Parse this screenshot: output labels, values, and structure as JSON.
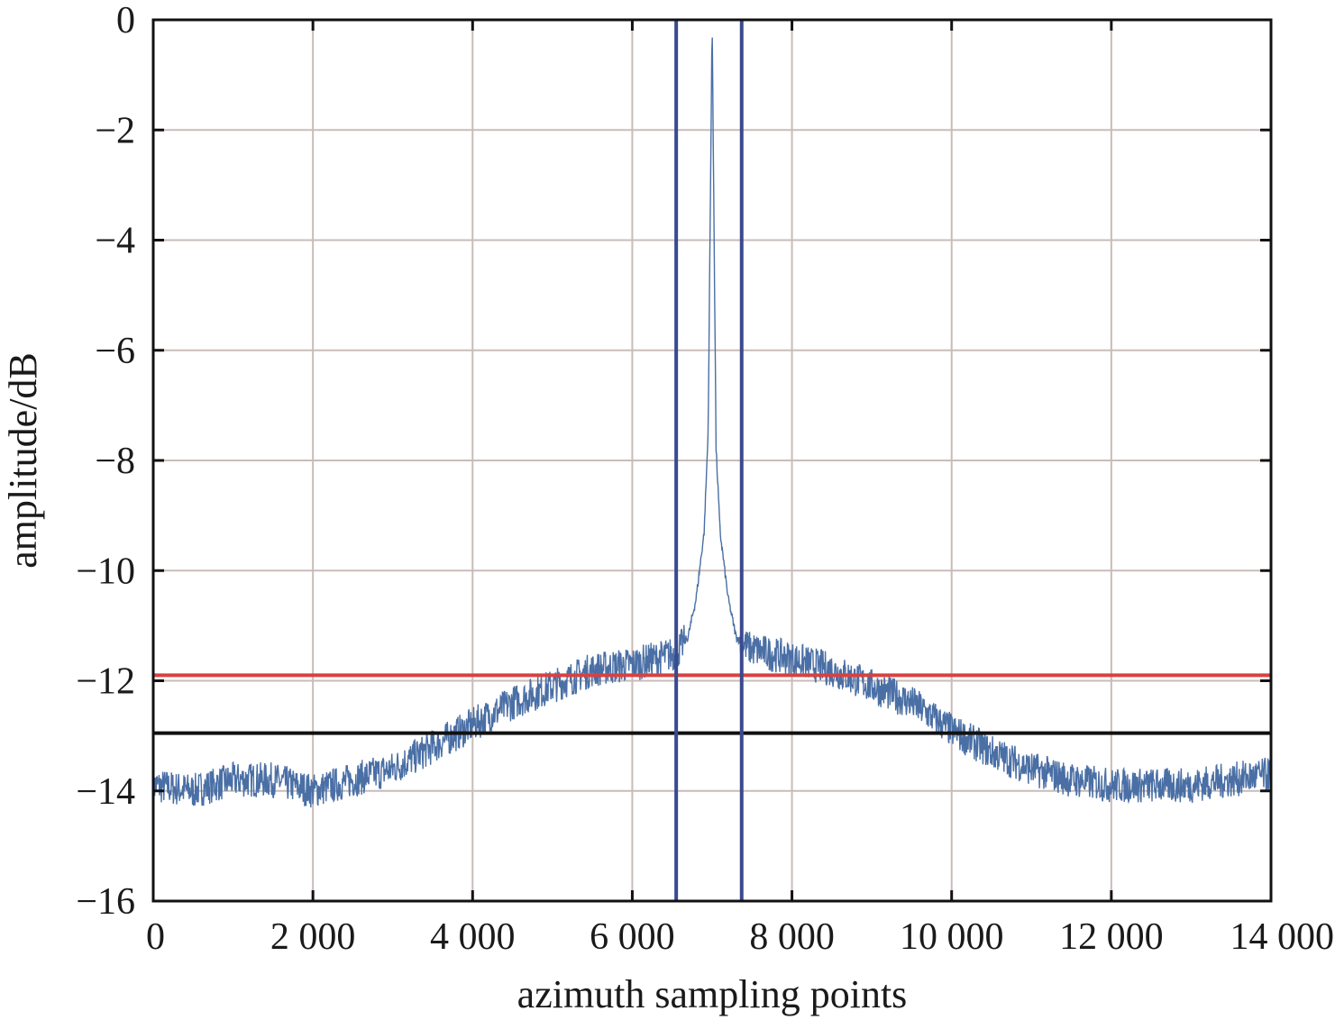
{
  "chart_data": {
    "type": "line",
    "title": "",
    "xlabel": "azimuth sampling points",
    "ylabel": "amplitude/dB",
    "xlim": [
      0,
      14000
    ],
    "ylim": [
      -16,
      0
    ],
    "x_ticks": [
      0,
      2000,
      4000,
      6000,
      8000,
      10000,
      12000,
      14000
    ],
    "x_tick_labels": [
      "0",
      "2 000",
      "4 000",
      "6 000",
      "8 000",
      "10 000",
      "12 000",
      "14 000"
    ],
    "y_ticks": [
      0,
      -2,
      -4,
      -6,
      -8,
      -10,
      -12,
      -14,
      -16
    ],
    "y_tick_labels": [
      "0",
      "−2",
      "−4",
      "−6",
      "−8",
      "−10",
      "−12",
      "−14",
      "−16"
    ],
    "grid": true,
    "series": [
      {
        "color": "#4a6fa5",
        "x": [
          0,
          500,
          1000,
          1500,
          2000,
          2500,
          3000,
          3500,
          4000,
          4500,
          5000,
          5500,
          6000,
          6300,
          6550,
          6700,
          6800,
          6900,
          6950,
          7000,
          7050,
          7100,
          7200,
          7300,
          7450,
          7700,
          8000,
          8500,
          9000,
          9500,
          10000,
          10500,
          11000,
          11500,
          12000,
          12500,
          13000,
          13500,
          14000
        ],
        "y": [
          -13.9,
          -14.0,
          -13.8,
          -13.8,
          -14.0,
          -13.8,
          -13.6,
          -13.2,
          -12.8,
          -12.4,
          -12.1,
          -11.8,
          -11.7,
          -11.6,
          -11.5,
          -11.2,
          -10.5,
          -9.3,
          -7.5,
          0,
          -7.8,
          -9.3,
          -10.5,
          -11.2,
          -11.4,
          -11.5,
          -11.6,
          -11.8,
          -12.1,
          -12.4,
          -12.9,
          -13.3,
          -13.6,
          -13.8,
          -13.9,
          -13.9,
          -13.9,
          -13.8,
          -13.7
        ]
      }
    ],
    "reference_lines": [
      {
        "orientation": "horizontal",
        "value": -11.9,
        "color": "#d94040"
      },
      {
        "orientation": "horizontal",
        "value": -12.95,
        "color": "#111111"
      },
      {
        "orientation": "vertical",
        "value": 6550,
        "color": "#3a4a8e"
      },
      {
        "orientation": "vertical",
        "value": 7370,
        "color": "#3a4a8e"
      }
    ]
  }
}
